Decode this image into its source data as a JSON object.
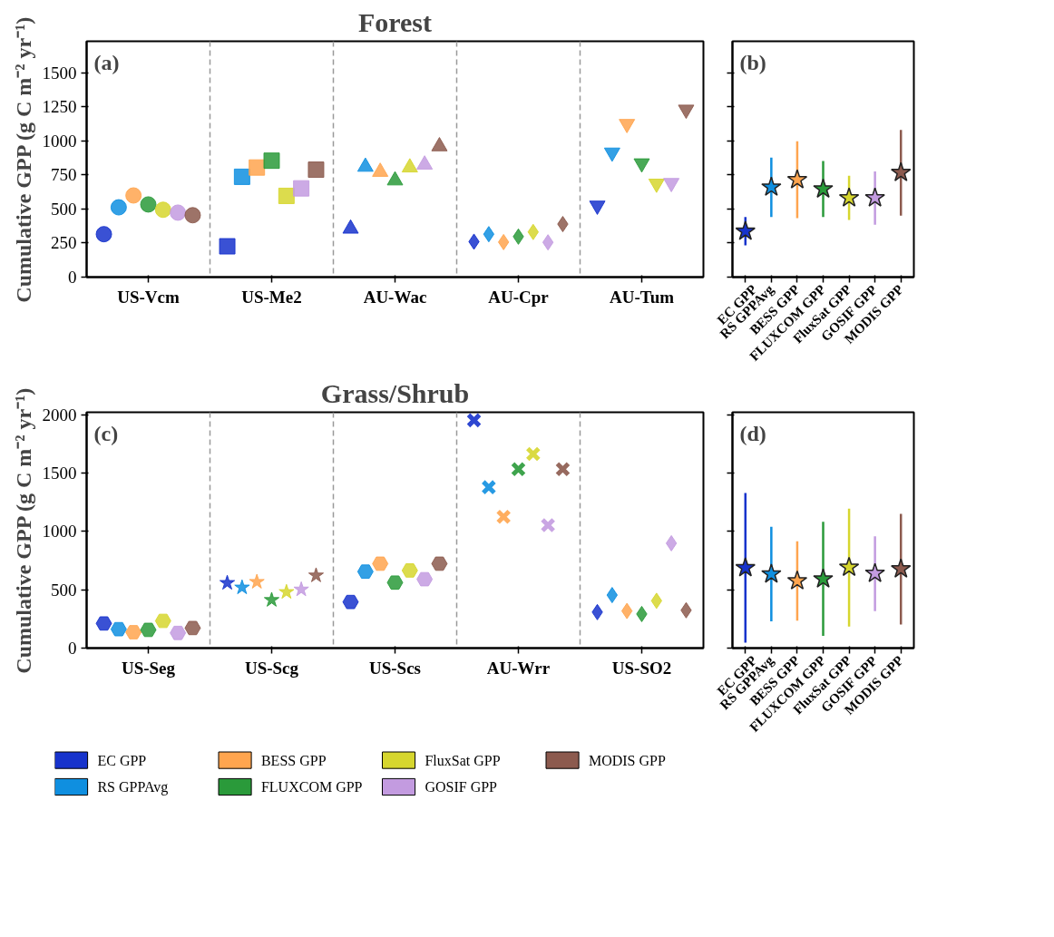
{
  "chart_data": [
    {
      "type": "scatter",
      "title": "Forest",
      "ylabel": "Cumulative GPP (g C m⁻² yr⁻¹)",
      "categories": [
        "US-Vcm",
        "US-Me2",
        "AU-Wac",
        "AU-Cpr",
        "AU-Tum"
      ],
      "ylim": [
        0,
        1730
      ],
      "yticks": [
        0,
        250,
        500,
        750,
        1000,
        1250,
        1500
      ],
      "grid": "x",
      "annotations": [
        "(a)"
      ],
      "series": [
        {
          "color": "#1733cc",
          "values": [
            315,
            226,
            355,
            260,
            525
          ]
        },
        {
          "color": "#0f8fe0",
          "values": [
            512,
            736,
            809,
            315,
            914
          ]
        },
        {
          "color": "#ffa54f",
          "values": [
            599,
            804,
            772,
            257,
            1124
          ]
        },
        {
          "color": "#2a9a3a",
          "values": [
            533,
            854,
            709,
            297,
            835
          ]
        },
        {
          "color": "#d6d62e",
          "values": [
            494,
            596,
            804,
            331,
            686
          ]
        },
        {
          "color": "#c39be0",
          "values": [
            473,
            651,
            825,
            255,
            691
          ]
        },
        {
          "color": "#8c5a4e",
          "values": [
            454,
            788,
            959,
            389,
            1229
          ]
        }
      ]
    },
    {
      "type": "scatter",
      "categories": [
        "EC GPP",
        "RS GPPAvg",
        "BESS GPP",
        "FLUXCOM GPP",
        "FluxSat GPP",
        "GOSIF GPP",
        "MODIS GPP"
      ],
      "values": [
        336,
        660,
        714,
        646,
        581,
        581,
        767
      ],
      "colors": [
        "#1733cc",
        "#0f8fe0",
        "#ffa54f",
        "#2a9a3a",
        "#d6d62e",
        "#c39be0",
        "#8c5a4e"
      ],
      "errors": [
        [
          233,
          441
        ],
        [
          441,
          876
        ],
        [
          432,
          997
        ],
        [
          441,
          852
        ],
        [
          419,
          743
        ],
        [
          384,
          776
        ],
        [
          451,
          1079
        ]
      ],
      "ylim": [
        0,
        1730
      ],
      "yticks": [
        0,
        250,
        500,
        750,
        1000,
        1250,
        1500
      ],
      "tick_labels": "x",
      "marker": "star",
      "annotations": [
        "(b)"
      ]
    },
    {
      "type": "scatter",
      "title": "Grass/Shrub",
      "ylabel": "Cumulative GPP (g C m⁻² yr⁻¹)",
      "categories": [
        "US-Seg",
        "US-Scg",
        "US-Scs",
        "AU-Wrr",
        "US-SO2"
      ],
      "ylim": [
        0,
        2020
      ],
      "yticks": [
        0,
        500,
        1000,
        1500,
        2000
      ],
      "grid": "x",
      "legend": "bottom",
      "annotations": [
        "(c)"
      ],
      "series": [
        {
          "name": "EC GPP",
          "color": "#1733cc",
          "values": [
            211,
            558,
            395,
            1951,
            308
          ]
        },
        {
          "name": "RS GPPAvg",
          "color": "#0f8fe0",
          "values": [
            162,
            519,
            655,
            1378,
            454
          ]
        },
        {
          "name": "BESS GPP",
          "color": "#ffa54f",
          "values": [
            136,
            567,
            723,
            1125,
            318
          ]
        },
        {
          "name": "FLUXCOM GPP",
          "color": "#2a9a3a",
          "values": [
            156,
            412,
            561,
            1533,
            292
          ]
        },
        {
          "name": "FluxSat GPP",
          "color": "#d6d62e",
          "values": [
            233,
            480,
            665,
            1663,
            405
          ]
        },
        {
          "name": "GOSIF GPP",
          "color": "#c39be0",
          "values": [
            130,
            502,
            590,
            1053,
            898
          ]
        },
        {
          "name": "MODIS GPP",
          "color": "#8c5a4e",
          "values": [
            172,
            622,
            723,
            1533,
            324
          ]
        }
      ]
    },
    {
      "type": "scatter",
      "categories": [
        "EC GPP",
        "RS GPPAvg",
        "BESS GPP",
        "FLUXCOM GPP",
        "FluxSat GPP",
        "GOSIF GPP",
        "MODIS GPP"
      ],
      "values": [
        688,
        634,
        576,
        592,
        692,
        640,
        678
      ],
      "colors": [
        "#1733cc",
        "#0f8fe0",
        "#ffa54f",
        "#2a9a3a",
        "#d6d62e",
        "#c39be0",
        "#8c5a4e"
      ],
      "errors": [
        [
          46,
          1329
        ],
        [
          229,
          1039
        ],
        [
          235,
          915
        ],
        [
          104,
          1081
        ],
        [
          185,
          1195
        ],
        [
          316,
          958
        ],
        [
          202,
          1150
        ]
      ],
      "ylim": [
        0,
        2020
      ],
      "yticks": [
        0,
        500,
        1000,
        1500,
        2000
      ],
      "tick_labels": "x",
      "marker": "star",
      "annotations": [
        "(d)"
      ]
    }
  ]
}
